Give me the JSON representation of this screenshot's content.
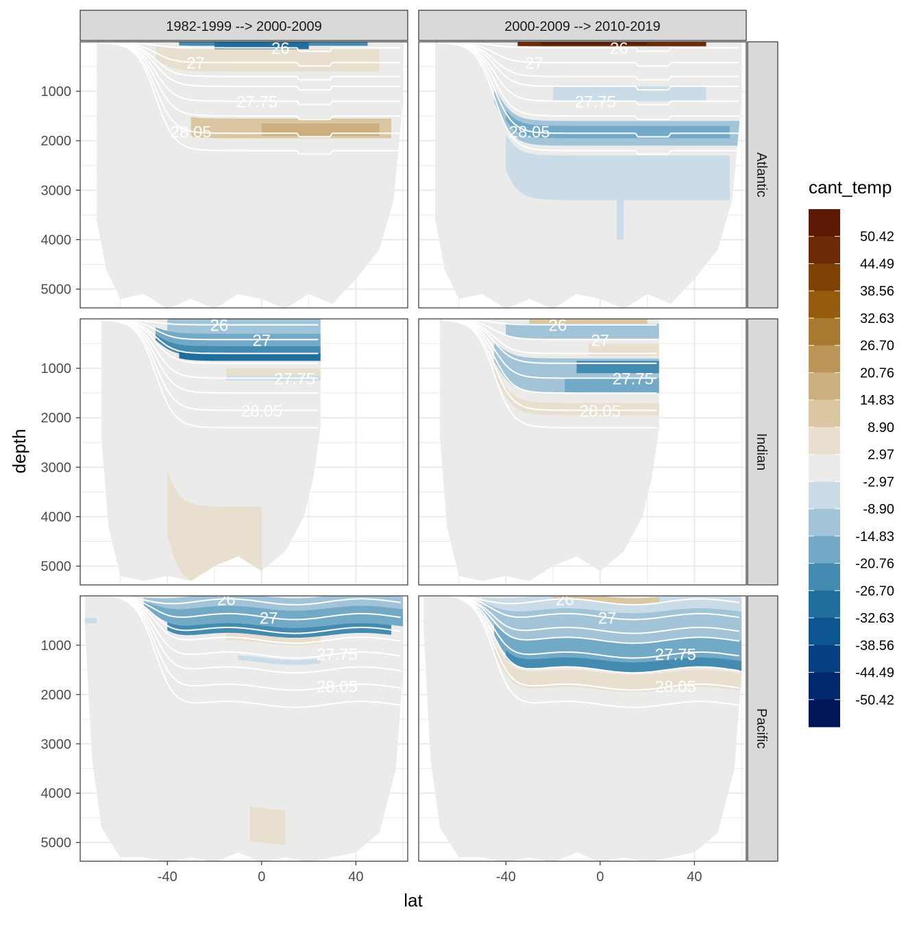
{
  "chart_data": {
    "type": "faceted-contour-section",
    "xlabel": "lat",
    "ylabel": "depth",
    "x_ticks": [
      -40,
      0,
      40
    ],
    "x_range": [
      -77,
      62
    ],
    "y_ticks": [
      1000,
      2000,
      3000,
      4000,
      5000
    ],
    "y_range": [
      5380,
      0
    ],
    "columns": [
      "1982-1999 --> 2000-2009",
      "2000-2009 --> 2010-2019"
    ],
    "rows": [
      "Atlantic",
      "Indian",
      "Pacific"
    ],
    "isopycnal_labels": [
      "26",
      "27",
      "27.75",
      "28.05"
    ],
    "legend": {
      "title": "cant_temp",
      "breaks": [
        "50.42",
        "44.49",
        "38.56",
        "32.63",
        "26.70",
        "20.76",
        "14.83",
        "8.90",
        "2.97",
        "-2.97",
        "-8.90",
        "-14.83",
        "-20.76",
        "-26.70",
        "-32.63",
        "-38.56",
        "-44.49",
        "-50.42"
      ],
      "colors": [
        "#5c1a05",
        "#6e2a05",
        "#7f4204",
        "#945c0c",
        "#a87930",
        "#bb9458",
        "#cbaf7e",
        "#dac7a2",
        "#e8dfcf",
        "#ebecea",
        "#cadce8",
        "#a1c4d9",
        "#72a9c6",
        "#438bb1",
        "#1f6e9e",
        "#0d5591",
        "#063f82",
        "#02286d",
        "#001658"
      ]
    }
  },
  "colors": {
    "ocean": "#ebecea",
    "grid": "#ebebeb",
    "contour": "#ffffff",
    "strip": "#d9d9d9"
  }
}
